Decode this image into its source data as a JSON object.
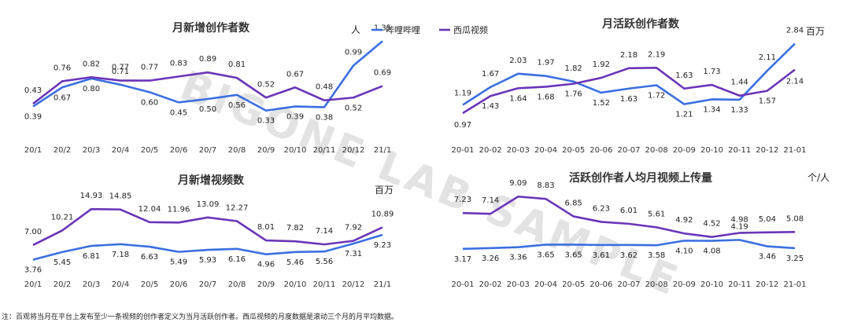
{
  "legend": [
    {
      "name": "哔哩哔哩",
      "color": "#3b6fe0"
    },
    {
      "name": "西瓜视频",
      "color": "#6a35b8"
    }
  ],
  "watermark": "BIGONE LAB SAMPLE",
  "footnote": "注：百观将当月在平台上发布至少一条视频的创作者定义为当月活跃创作者。西瓜视频的月度数据是滚动三个月的月平均数据。",
  "chart_data": [
    {
      "type": "line",
      "title": "月新增创作者数",
      "unit": "人",
      "categories": [
        "20/1",
        "20/2",
        "20/3",
        "20/4",
        "20/5",
        "20/6",
        "20/7",
        "20/8",
        "20/9",
        "20/10",
        "20/11",
        "20/12",
        "21/1"
      ],
      "ylim": [
        0.2,
        1.4
      ],
      "series": [
        {
          "name": "哔哩哔哩",
          "values": [
            0.39,
            0.67,
            0.8,
            0.71,
            0.6,
            0.45,
            0.5,
            0.56,
            0.33,
            0.39,
            0.38,
            0.99,
            1.35
          ]
        },
        {
          "name": "西瓜视频",
          "values": [
            0.43,
            0.76,
            0.82,
            0.77,
            0.77,
            0.83,
            0.89,
            0.81,
            0.52,
            0.67,
            0.48,
            0.52,
            0.69
          ]
        }
      ]
    },
    {
      "type": "line",
      "title": "月活跃创作者数",
      "unit": "百万",
      "categories": [
        "20-01",
        "20-02",
        "20-03",
        "20-04",
        "20-05",
        "20-06",
        "20-07",
        "20-08",
        "20-09",
        "20-10",
        "20-11",
        "20-12",
        "21-01"
      ],
      "ylim": [
        0.8,
        3.0
      ],
      "series": [
        {
          "name": "哔哩哔哩",
          "values": [
            1.19,
            1.67,
            2.03,
            1.97,
            1.82,
            1.52,
            1.63,
            1.72,
            1.21,
            1.34,
            1.33,
            2.11,
            2.84
          ]
        },
        {
          "name": "西瓜视频",
          "values": [
            0.97,
            1.43,
            1.64,
            1.68,
            1.76,
            1.92,
            2.18,
            2.19,
            1.63,
            1.73,
            1.44,
            1.57,
            2.14
          ]
        }
      ]
    },
    {
      "type": "line",
      "title": "月新增视频数",
      "unit": "百万",
      "categories": [
        "20/1",
        "20/2",
        "20/3",
        "20/4",
        "20/5",
        "20/6",
        "20/7",
        "20/8",
        "20/9",
        "20/10",
        "20/11",
        "20/12",
        "21/1"
      ],
      "ylim": [
        3,
        16
      ],
      "series": [
        {
          "name": "哔哩哔哩",
          "values": [
            3.76,
            5.45,
            6.81,
            7.18,
            6.63,
            5.49,
            5.93,
            6.16,
            4.96,
            5.46,
            5.56,
            7.31,
            9.23
          ]
        },
        {
          "name": "西瓜视频",
          "values": [
            7.0,
            10.21,
            14.93,
            14.85,
            12.04,
            11.96,
            13.09,
            12.27,
            8.01,
            7.82,
            7.14,
            7.92,
            10.89
          ]
        }
      ]
    },
    {
      "type": "line",
      "title": "活跃创作者人均月视频上传量",
      "unit": "个/人",
      "categories": [
        "20-01",
        "20-02",
        "20-03",
        "20-04",
        "20-05",
        "20-06",
        "20-07",
        "20-08",
        "20-09",
        "20-10",
        "20-11",
        "20-12",
        "21-01"
      ],
      "ylim": [
        2,
        10
      ],
      "series": [
        {
          "name": "哔哩哔哩",
          "values": [
            3.17,
            3.26,
            3.36,
            3.65,
            3.65,
            3.61,
            3.62,
            3.58,
            4.1,
            4.08,
            4.19,
            3.46,
            3.25
          ]
        },
        {
          "name": "西瓜视频",
          "values": [
            7.23,
            7.14,
            9.09,
            8.83,
            6.85,
            6.23,
            6.01,
            5.61,
            4.92,
            4.52,
            4.98,
            5.04,
            5.08
          ]
        }
      ]
    }
  ]
}
